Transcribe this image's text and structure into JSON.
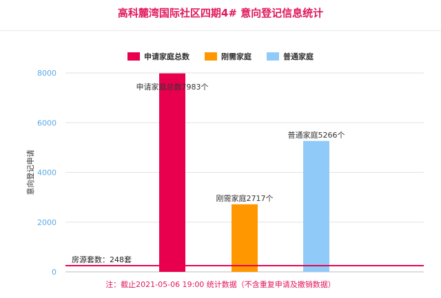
{
  "title": "高科麓湾国际社区四期4# 意向登记信息统计",
  "note": "注：截止2021-05-06 19:00 统计数据（不含重复申请及撤销数据）",
  "chart_data": {
    "type": "bar",
    "ylabel": "意向登记申请",
    "ylim": [
      0,
      8000
    ],
    "yticks": [
      0,
      2000,
      4000,
      6000,
      8000
    ],
    "grid": true,
    "legend_position": "top-center",
    "series": [
      {
        "name": "申请家庭总数",
        "value": 7983,
        "color": "#e8004f",
        "label": "申请家庭总数7983个"
      },
      {
        "name": "刚需家庭",
        "value": 2717,
        "color": "#ff9800",
        "label": "刚需家庭2717个"
      },
      {
        "name": "普通家庭",
        "value": 5266,
        "color": "#90caf9",
        "label": "普通家庭5266个"
      }
    ],
    "reference_line": {
      "value": 248,
      "label": "房源套数：248套",
      "color": "#e8004f"
    }
  }
}
